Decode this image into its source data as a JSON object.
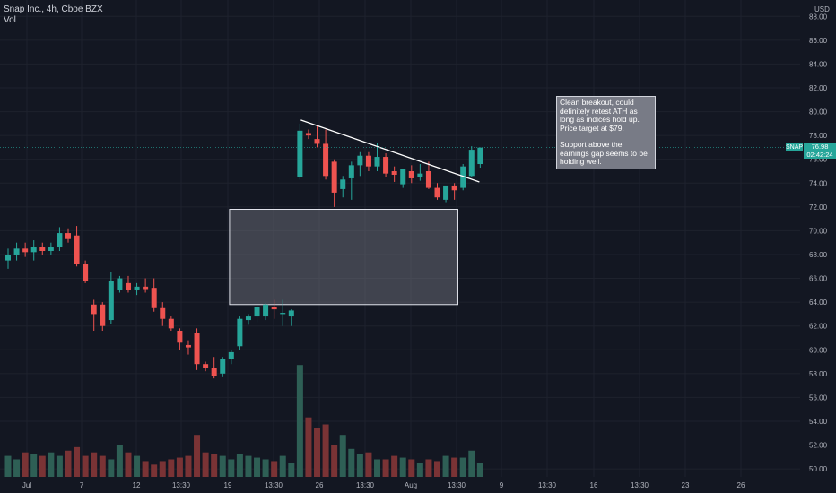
{
  "header": {
    "symbol_line": "Snap Inc., 4h, Cboe BZX",
    "volume_label": "Vol"
  },
  "price_scale": {
    "currency": "USD",
    "ticks": [
      "88.00",
      "86.00",
      "84.00",
      "82.00",
      "80.00",
      "78.00",
      "76.00",
      "74.00",
      "72.00",
      "70.00",
      "68.00",
      "66.00",
      "64.00",
      "62.00",
      "60.00",
      "58.00",
      "56.00",
      "54.00",
      "52.00",
      "50.00"
    ]
  },
  "time_scale": {
    "ticks": [
      "Jul",
      "7",
      "12",
      "13:30",
      "19",
      "13:30",
      "26",
      "13:30",
      "Aug",
      "13:30",
      "9",
      "13:30",
      "16",
      "13:30",
      "23",
      "26"
    ]
  },
  "last_price": {
    "symbol": "SNAP",
    "value": "76.98",
    "countdown": "02:42:24"
  },
  "annotation": {
    "line1": "Clean breakout, could definitely retest ATH as long as indices hold up. Price target at $79.",
    "line2": "Support above the earnings gap seems to be holding well."
  },
  "colors": {
    "background": "#131722",
    "up": "#26a69a",
    "down": "#ef5350",
    "volume_up": "#2e5f55",
    "volume_down": "#7a3335",
    "grid": "#1e222d",
    "text": "#b2b5be"
  },
  "chart_data": {
    "type": "candlestick",
    "ylim": [
      49.3,
      88.5
    ],
    "grid": true,
    "candles": [
      {
        "o": 67.5,
        "h": 68.5,
        "l": 66.8,
        "c": 68.0
      },
      {
        "o": 68.0,
        "h": 69.0,
        "l": 67.5,
        "c": 68.5
      },
      {
        "o": 68.5,
        "h": 69.0,
        "l": 67.8,
        "c": 68.2
      },
      {
        "o": 68.2,
        "h": 69.2,
        "l": 67.5,
        "c": 68.6
      },
      {
        "o": 68.6,
        "h": 69.0,
        "l": 68.0,
        "c": 68.3
      },
      {
        "o": 68.3,
        "h": 69.0,
        "l": 68.0,
        "c": 68.6
      },
      {
        "o": 68.6,
        "h": 70.3,
        "l": 68.3,
        "c": 69.8
      },
      {
        "o": 69.8,
        "h": 70.2,
        "l": 69.0,
        "c": 69.3
      },
      {
        "o": 69.6,
        "h": 70.4,
        "l": 67.0,
        "c": 67.2
      },
      {
        "o": 67.2,
        "h": 67.5,
        "l": 65.6,
        "c": 65.8
      },
      {
        "o": 63.8,
        "h": 64.2,
        "l": 61.6,
        "c": 63.0
      },
      {
        "o": 63.8,
        "h": 64.0,
        "l": 61.6,
        "c": 62.0
      },
      {
        "o": 62.5,
        "h": 66.5,
        "l": 62.2,
        "c": 65.8
      },
      {
        "o": 65.0,
        "h": 66.2,
        "l": 64.8,
        "c": 66.0
      },
      {
        "o": 65.6,
        "h": 66.2,
        "l": 64.8,
        "c": 65.0
      },
      {
        "o": 65.0,
        "h": 65.6,
        "l": 64.6,
        "c": 65.3
      },
      {
        "o": 65.3,
        "h": 66.0,
        "l": 64.8,
        "c": 65.1
      },
      {
        "o": 65.2,
        "h": 66.0,
        "l": 63.2,
        "c": 63.5
      },
      {
        "o": 63.5,
        "h": 64.0,
        "l": 62.0,
        "c": 62.6
      },
      {
        "o": 62.6,
        "h": 62.8,
        "l": 61.6,
        "c": 61.8
      },
      {
        "o": 61.6,
        "h": 61.8,
        "l": 60.0,
        "c": 60.6
      },
      {
        "o": 60.4,
        "h": 60.8,
        "l": 59.6,
        "c": 60.2
      },
      {
        "o": 61.4,
        "h": 61.8,
        "l": 58.3,
        "c": 58.8
      },
      {
        "o": 58.8,
        "h": 59.0,
        "l": 58.2,
        "c": 58.5
      },
      {
        "o": 58.5,
        "h": 59.4,
        "l": 57.6,
        "c": 57.8
      },
      {
        "o": 58.0,
        "h": 59.4,
        "l": 57.7,
        "c": 59.2
      },
      {
        "o": 59.2,
        "h": 60.0,
        "l": 58.8,
        "c": 59.8
      },
      {
        "o": 60.3,
        "h": 62.8,
        "l": 60.0,
        "c": 62.6
      },
      {
        "o": 62.5,
        "h": 63.0,
        "l": 62.1,
        "c": 62.8
      },
      {
        "o": 62.8,
        "h": 63.8,
        "l": 62.3,
        "c": 63.6
      },
      {
        "o": 62.8,
        "h": 63.9,
        "l": 62.5,
        "c": 63.8
      },
      {
        "o": 63.6,
        "h": 64.2,
        "l": 62.6,
        "c": 63.4
      },
      {
        "o": 63.0,
        "h": 64.2,
        "l": 62.0,
        "c": 63.1
      },
      {
        "o": 62.8,
        "h": 63.4,
        "l": 62.0,
        "c": 63.3
      },
      {
        "o": 74.5,
        "h": 79.0,
        "l": 74.3,
        "c": 78.4
      },
      {
        "o": 78.2,
        "h": 78.5,
        "l": 77.7,
        "c": 78.0
      },
      {
        "o": 77.7,
        "h": 78.9,
        "l": 77.0,
        "c": 77.3
      },
      {
        "o": 77.3,
        "h": 78.5,
        "l": 74.3,
        "c": 74.6
      },
      {
        "o": 75.8,
        "h": 76.0,
        "l": 72.0,
        "c": 73.2
      },
      {
        "o": 73.5,
        "h": 74.6,
        "l": 72.8,
        "c": 74.3
      },
      {
        "o": 74.4,
        "h": 75.8,
        "l": 72.6,
        "c": 75.5
      },
      {
        "o": 75.5,
        "h": 76.6,
        "l": 74.6,
        "c": 76.3
      },
      {
        "o": 76.3,
        "h": 76.6,
        "l": 75.0,
        "c": 75.4
      },
      {
        "o": 75.4,
        "h": 77.4,
        "l": 75.0,
        "c": 76.2
      },
      {
        "o": 76.2,
        "h": 76.5,
        "l": 74.5,
        "c": 74.8
      },
      {
        "o": 75.0,
        "h": 75.4,
        "l": 74.1,
        "c": 74.7
      },
      {
        "o": 73.9,
        "h": 75.0,
        "l": 73.6,
        "c": 75.2
      },
      {
        "o": 75.0,
        "h": 75.5,
        "l": 74.0,
        "c": 74.4
      },
      {
        "o": 74.5,
        "h": 75.6,
        "l": 74.2,
        "c": 74.8
      },
      {
        "o": 75.0,
        "h": 75.8,
        "l": 73.5,
        "c": 73.6
      },
      {
        "o": 73.6,
        "h": 74.0,
        "l": 72.6,
        "c": 72.8
      },
      {
        "o": 72.6,
        "h": 73.5,
        "l": 72.4,
        "c": 73.8
      },
      {
        "o": 73.8,
        "h": 74.0,
        "l": 72.6,
        "c": 73.4
      },
      {
        "o": 73.6,
        "h": 75.6,
        "l": 73.4,
        "c": 75.4
      },
      {
        "o": 74.6,
        "h": 77.1,
        "l": 74.5,
        "c": 76.8
      },
      {
        "o": 75.6,
        "h": 77.0,
        "l": 75.3,
        "c": 76.98
      }
    ],
    "volume": [
      0.12,
      0.1,
      0.14,
      0.13,
      0.12,
      0.14,
      0.12,
      0.15,
      0.17,
      0.12,
      0.14,
      0.12,
      0.1,
      0.18,
      0.14,
      0.12,
      0.09,
      0.07,
      0.09,
      0.1,
      0.11,
      0.12,
      0.24,
      0.14,
      0.13,
      0.12,
      0.1,
      0.13,
      0.12,
      0.11,
      0.1,
      0.09,
      0.12,
      0.08,
      0.64,
      0.34,
      0.28,
      0.3,
      0.18,
      0.24,
      0.16,
      0.13,
      0.14,
      0.1,
      0.1,
      0.12,
      0.11,
      0.1,
      0.08,
      0.1,
      0.09,
      0.12,
      0.11,
      0.11,
      0.15,
      0.08
    ],
    "trendline": {
      "from": {
        "candle": 34.1,
        "price": 79.3
      },
      "to": {
        "candle": 54.9,
        "price": 74.1
      }
    },
    "zone": {
      "from_candle": 25.8,
      "to_candle": 52.4,
      "top": 71.8,
      "bottom": 63.8
    }
  }
}
